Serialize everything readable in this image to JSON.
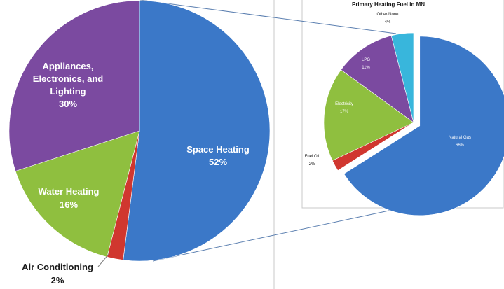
{
  "chart_data": [
    {
      "type": "pie",
      "title": "",
      "categories": [
        "Space Heating",
        "Air Conditioning",
        "Water Heating",
        "Appliances, Electronics, and Lighting"
      ],
      "values": [
        52,
        2,
        16,
        30
      ],
      "value_labels": [
        "52%",
        "2%",
        "16%",
        "30%"
      ],
      "label_lines": {
        "space": [
          "Space Heating",
          "52%"
        ],
        "ac": [
          "Air Conditioning",
          "2%"
        ],
        "water": [
          "Water Heating",
          "16%"
        ],
        "appl": [
          "Appliances,",
          "Electronics, and",
          "Lighting",
          "30%"
        ]
      },
      "colors": [
        "#3b78c8",
        "#d0372f",
        "#8fbf3f",
        "#7b4aa0"
      ],
      "exploded": "Space Heating"
    },
    {
      "type": "pie",
      "title": "Primary Heating Fuel in MN",
      "categories": [
        "Natural Gas",
        "Fuel Oil",
        "Electricity",
        "LPG",
        "Other/None"
      ],
      "values": [
        66,
        2,
        17,
        11,
        4
      ],
      "value_labels": [
        "66%",
        "2%",
        "17%",
        "11%",
        "4%"
      ],
      "colors": [
        "#3b78c8",
        "#d0372f",
        "#8fbf3f",
        "#7b4aa0",
        "#38b6dc"
      ],
      "exploded": "Natural Gas"
    }
  ]
}
